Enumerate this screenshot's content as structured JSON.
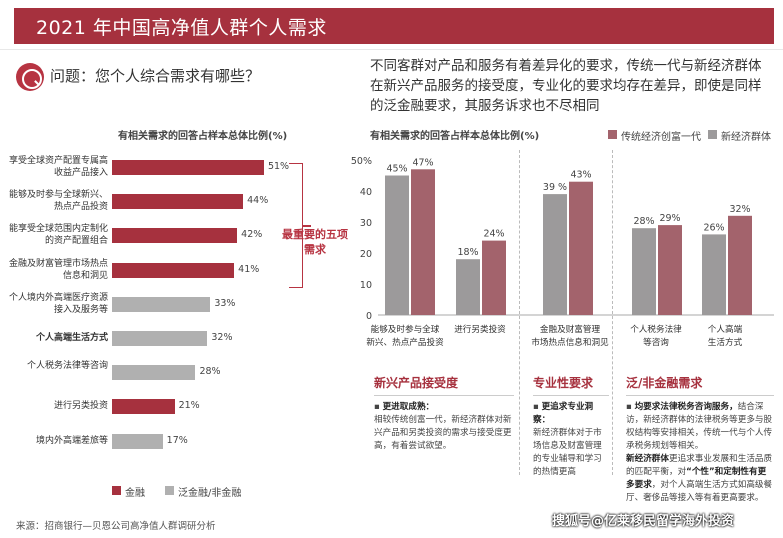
{
  "header": {
    "title": "2021 年中国高净值人群个人需求"
  },
  "question": {
    "text": "问题：您个人综合需求有哪些？"
  },
  "intro": {
    "text": "不同客群对产品和服务有着差异化的要求，传统一代与新经济群体在新兴产品服务的接受度，专业化的要求均存在差异，即使是同样的泛金融要求，其服务诉求也不尽相同"
  },
  "colors": {
    "brand": "#a6313e",
    "finance": "#a6313e",
    "pan": "#b0b0b0",
    "traditional": "#a3636c",
    "new_economy": "#9c9a9b"
  },
  "callout": {
    "text": "最重要的五项需求"
  },
  "chart_data": [
    {
      "type": "bar",
      "orientation": "horizontal",
      "title": "有相关需求的回答占样本总体比例(%)",
      "categories": [
        "享受全球资产配置专属高收益产品接入",
        "能够及时参与全球新兴、热点产品投资",
        "能享受全球范围内定制化的资产配置组合",
        "金融及财富管理市场热点信息和洞见",
        "个人境内外高端医疗资源接入及服务等",
        "个人高端生活方式",
        "个人税务法律等咨询",
        "进行另类投资",
        "境内外高端差旅等"
      ],
      "values": [
        51,
        44,
        42,
        41,
        33,
        32,
        28,
        21,
        17
      ],
      "value_labels": [
        "51%",
        "44%",
        "42%",
        "41%",
        "33%",
        "32%",
        "28%",
        "21%",
        "17%"
      ],
      "group": [
        "金融",
        "金融",
        "金融",
        "金融",
        "泛金融/非金融",
        "泛金融/非金融",
        "泛金融/非金融",
        "金融",
        "泛金融/非金融"
      ],
      "legend": [
        "金融",
        "泛金融/非金融"
      ]
    },
    {
      "type": "bar",
      "title": "有相关需求的回答占样本总体比例(%)",
      "categories": [
        "能够及时参与全球新兴、热点产品投资",
        "进行另类投资",
        "金融及财富管理市场热点信息和洞见",
        "个人税务法律等咨询",
        "个人高端生活方式"
      ],
      "series": [
        {
          "name": "传统经济创富一代",
          "values": [
            47,
            24,
            43,
            29,
            32
          ]
        },
        {
          "name": "新经济群体",
          "values": [
            45,
            18,
            39,
            28,
            26
          ]
        }
      ],
      "value_labels": {
        "传统经济创富一代": [
          "47%",
          "24%",
          "43%",
          "29%",
          "32%"
        ],
        "新经济群体": [
          "45%",
          "18%",
          "39 %",
          "28%",
          "26%"
        ]
      },
      "ylim": [
        0,
        50
      ],
      "yticks": [
        "50%",
        "40",
        "30",
        "20",
        "10",
        "0"
      ],
      "legend": [
        "传统经济创富一代",
        "新经济群体"
      ]
    }
  ],
  "sections": [
    {
      "title": "新兴产品接受度",
      "bullet": "更进取成熟：",
      "body": "相较传统创富一代，新经济群体对新兴产品和另类投资的需求与接受度更高，有着尝试欲望。"
    },
    {
      "title": "专业性要求",
      "bullet": "更追求专业洞察：",
      "body": "新经济群体对于市场信息及财富管理的专业辅导和学习的热情更高"
    },
    {
      "title": "泛/非金融需求",
      "bullet": "均要求法律税务咨询服务，",
      "body": "结合深访，新经济群体的法律税务等更多与股权结构等安排相关，传统一代与个人传承税务规划等相关。",
      "subhead": "新经济群体",
      "body2a": "更追求事业发展和生活品质的匹配平衡，对",
      "emph": "“个性”和定制性有更多要求",
      "body2b": "，对个人高端生活方式如高级餐厅、奢侈品等接入等有着更高要求。"
    }
  ],
  "source": {
    "text": "来源：招商银行—贝恩公司高净值人群调研分析"
  },
  "watermark": {
    "text": "搜狐号@亿莱移民留学海外投资"
  }
}
